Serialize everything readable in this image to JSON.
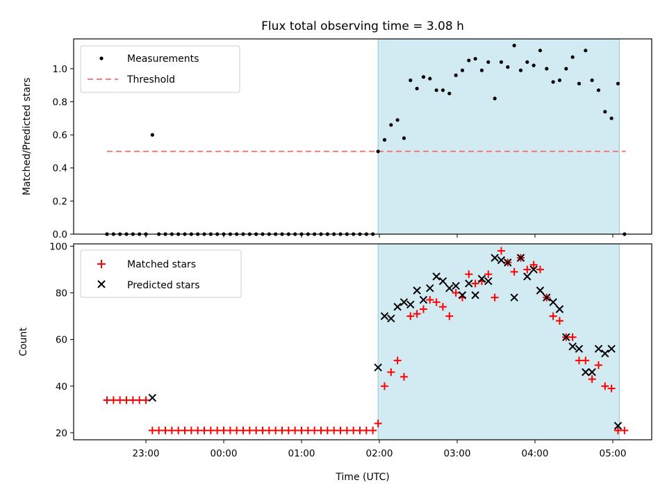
{
  "chart_data": [
    {
      "type": "scatter",
      "title": "Flux total observing time = 3.08 h",
      "xlabel": "",
      "ylabel": "Matched/Predicted stars",
      "ylim": [
        0,
        1.18
      ],
      "yticks": [
        "0.0",
        "0.2",
        "0.4",
        "0.6",
        "0.8",
        "1.0"
      ],
      "legend_position": "top-left",
      "shaded_interval": {
        "start": "01:59",
        "end": "05:05",
        "color": "#add8e6"
      },
      "threshold": {
        "name": "Threshold",
        "value": 0.5,
        "x_start": "22:30",
        "x_end": "05:10",
        "color": "#ff6464"
      },
      "series": [
        {
          "name": "Measurements",
          "color": "#000000",
          "x": [
            "22:30",
            "22:35",
            "22:40",
            "22:45",
            "22:50",
            "22:55",
            "23:00",
            "23:05",
            "23:10",
            "23:15",
            "23:20",
            "23:25",
            "23:30",
            "23:35",
            "23:40",
            "23:45",
            "23:50",
            "23:55",
            "00:00",
            "00:05",
            "00:10",
            "00:15",
            "00:20",
            "00:25",
            "00:30",
            "00:35",
            "00:40",
            "00:45",
            "00:50",
            "00:55",
            "01:00",
            "01:05",
            "01:10",
            "01:15",
            "01:20",
            "01:25",
            "01:30",
            "01:35",
            "01:40",
            "01:45",
            "01:50",
            "01:55",
            "01:59",
            "02:04",
            "02:09",
            "02:14",
            "02:19",
            "02:24",
            "02:29",
            "02:34",
            "02:39",
            "02:44",
            "02:49",
            "02:54",
            "02:59",
            "03:04",
            "03:09",
            "03:14",
            "03:19",
            "03:24",
            "03:29",
            "03:34",
            "03:39",
            "03:44",
            "03:49",
            "03:54",
            "03:59",
            "04:04",
            "04:09",
            "04:14",
            "04:19",
            "04:24",
            "04:29",
            "04:34",
            "04:39",
            "04:44",
            "04:49",
            "04:54",
            "04:59",
            "05:04",
            "05:09"
          ],
          "y": [
            0,
            0,
            0,
            0,
            0,
            0,
            0,
            0.6,
            0,
            0,
            0,
            0,
            0,
            0,
            0,
            0,
            0,
            0,
            0,
            0,
            0,
            0,
            0,
            0,
            0,
            0,
            0,
            0,
            0,
            0,
            0,
            0,
            0,
            0,
            0,
            0,
            0,
            0,
            0,
            0,
            0,
            0,
            0.5,
            0.57,
            0.66,
            0.69,
            0.58,
            0.93,
            0.88,
            0.95,
            0.94,
            0.87,
            0.87,
            0.85,
            0.96,
            0.99,
            1.05,
            1.06,
            0.99,
            1.04,
            0.82,
            1.04,
            1.01,
            1.14,
            0.99,
            1.04,
            1.02,
            1.11,
            1.0,
            0.92,
            0.93,
            1.0,
            1.07,
            0.91,
            1.11,
            0.93,
            0.87,
            0.74,
            0.7,
            0.91,
            0
          ]
        }
      ]
    },
    {
      "type": "scatter",
      "title": "",
      "xlabel": "Time (UTC)",
      "ylabel": "Count",
      "ylim": [
        17,
        101
      ],
      "yticks": [
        "20",
        "40",
        "60",
        "80",
        "100"
      ],
      "xticks": [
        "23:00",
        "00:00",
        "01:00",
        "02:00",
        "03:00",
        "04:00",
        "05:00"
      ],
      "legend_position": "top-left",
      "shaded_interval": {
        "start": "01:59",
        "end": "05:05",
        "color": "#add8e6"
      },
      "series": [
        {
          "name": "Matched stars",
          "marker": "+",
          "color": "#ff0000",
          "x": [
            "22:30",
            "22:35",
            "22:40",
            "22:45",
            "22:50",
            "22:55",
            "23:00",
            "23:05",
            "23:10",
            "23:15",
            "23:20",
            "23:25",
            "23:30",
            "23:35",
            "23:40",
            "23:45",
            "23:50",
            "23:55",
            "00:00",
            "00:05",
            "00:10",
            "00:15",
            "00:20",
            "00:25",
            "00:30",
            "00:35",
            "00:40",
            "00:45",
            "00:50",
            "00:55",
            "01:00",
            "01:05",
            "01:10",
            "01:15",
            "01:20",
            "01:25",
            "01:30",
            "01:35",
            "01:40",
            "01:45",
            "01:50",
            "01:55",
            "01:59",
            "02:04",
            "02:09",
            "02:14",
            "02:19",
            "02:24",
            "02:29",
            "02:34",
            "02:39",
            "02:44",
            "02:49",
            "02:54",
            "02:59",
            "03:04",
            "03:09",
            "03:14",
            "03:19",
            "03:24",
            "03:29",
            "03:34",
            "03:39",
            "03:44",
            "03:49",
            "03:54",
            "03:59",
            "04:04",
            "04:09",
            "04:14",
            "04:19",
            "04:24",
            "04:29",
            "04:34",
            "04:39",
            "04:44",
            "04:49",
            "04:54",
            "04:59",
            "05:04",
            "05:09"
          ],
          "y": [
            34,
            34,
            34,
            34,
            34,
            34,
            34,
            21,
            21,
            21,
            21,
            21,
            21,
            21,
            21,
            21,
            21,
            21,
            21,
            21,
            21,
            21,
            21,
            21,
            21,
            21,
            21,
            21,
            21,
            21,
            21,
            21,
            21,
            21,
            21,
            21,
            21,
            21,
            21,
            21,
            21,
            21,
            24,
            40,
            46,
            51,
            44,
            70,
            71,
            73,
            77,
            76,
            74,
            70,
            80,
            78,
            88,
            84,
            85,
            88,
            78,
            98,
            93,
            89,
            95,
            90,
            92,
            90,
            78,
            70,
            68,
            61,
            61,
            51,
            51,
            43,
            49,
            40,
            39,
            21,
            21
          ]
        },
        {
          "name": "Predicted stars",
          "marker": "x",
          "color": "#000000",
          "x": [
            "23:05",
            "01:59",
            "02:04",
            "02:09",
            "02:14",
            "02:19",
            "02:24",
            "02:29",
            "02:34",
            "02:39",
            "02:44",
            "02:49",
            "02:54",
            "02:59",
            "03:04",
            "03:09",
            "03:14",
            "03:19",
            "03:24",
            "03:29",
            "03:34",
            "03:39",
            "03:44",
            "03:49",
            "03:54",
            "03:59",
            "04:04",
            "04:09",
            "04:14",
            "04:19",
            "04:24",
            "04:29",
            "04:34",
            "04:39",
            "04:44",
            "04:49",
            "04:54",
            "04:59",
            "05:04"
          ],
          "y": [
            35,
            48,
            70,
            69,
            74,
            76,
            75,
            81,
            77,
            82,
            87,
            85,
            82,
            83,
            79,
            84,
            79,
            86,
            85,
            95,
            94,
            93,
            78,
            95,
            87,
            90,
            81,
            78,
            76,
            73,
            61,
            57,
            56,
            46,
            46,
            56,
            54,
            56,
            23
          ]
        }
      ]
    }
  ]
}
